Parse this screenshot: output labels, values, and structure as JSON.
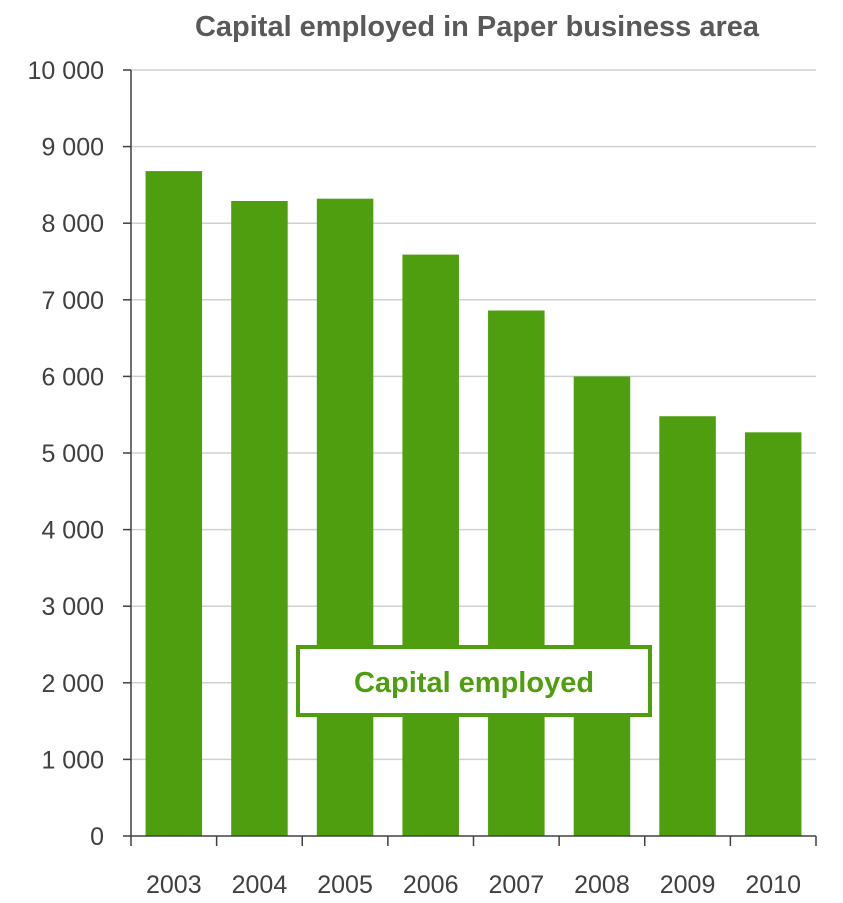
{
  "chart_data": {
    "type": "bar",
    "title": "Capital employed in Paper business area",
    "xlabel": "",
    "ylabel": "",
    "categories": [
      "2003",
      "2004",
      "2005",
      "2006",
      "2007",
      "2008",
      "2009",
      "2010"
    ],
    "series": [
      {
        "name": "Capital employed",
        "values": [
          8680,
          8290,
          8320,
          7590,
          6860,
          6000,
          5480,
          5270
        ],
        "color": "#4f9e0f"
      }
    ],
    "ylim": [
      0,
      10000
    ],
    "yticks": [
      0,
      1000,
      2000,
      3000,
      4000,
      5000,
      6000,
      7000,
      8000,
      9000,
      10000
    ],
    "ytick_labels": [
      "0",
      "1 000",
      "2 000",
      "3 000",
      "4 000",
      "5 000",
      "6 000",
      "7 000",
      "8 000",
      "9 000",
      "10 000"
    ],
    "grid": true,
    "legend": {
      "position": "inside-bottom-center",
      "label": "Capital employed"
    },
    "colors": {
      "bar": "#4f9e0f",
      "grid": "#d0d0d0",
      "axis": "#404040",
      "title": "#595959",
      "legend_text": "#4f9e0f",
      "legend_border": "#4f9e0f"
    }
  }
}
